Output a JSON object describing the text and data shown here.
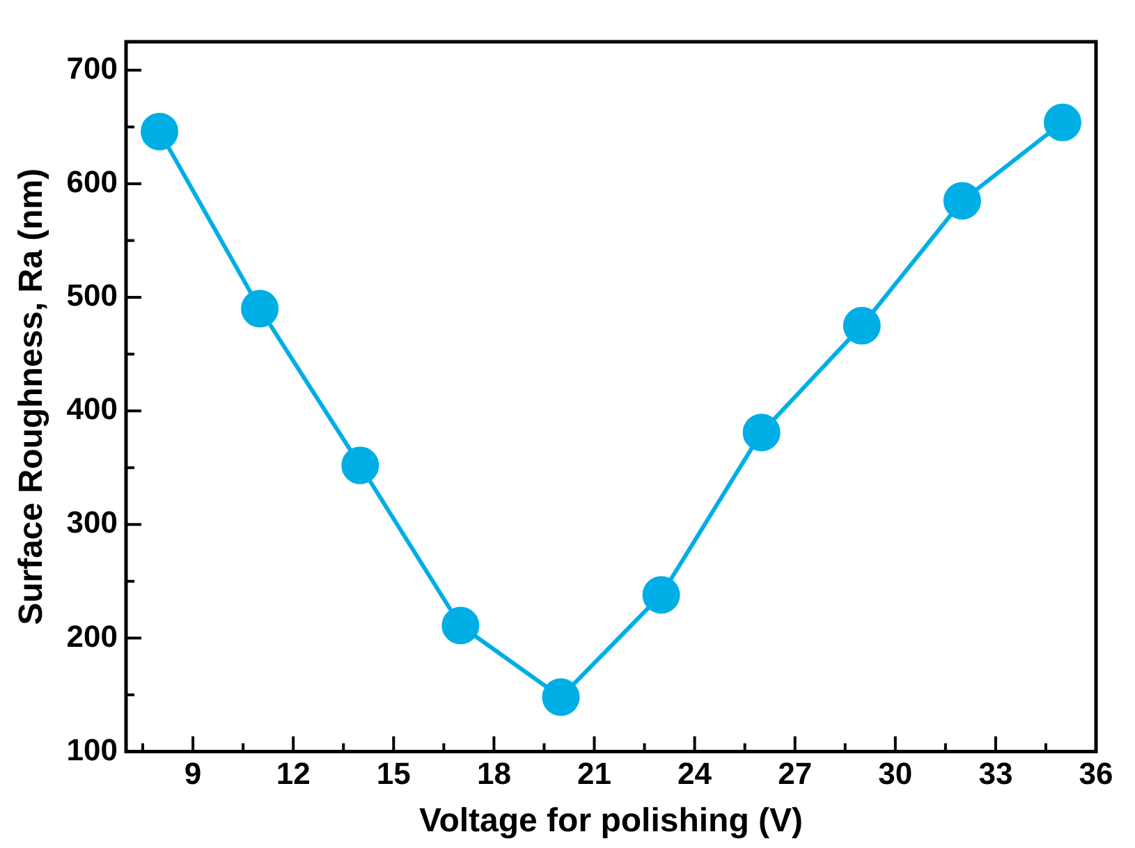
{
  "chart_data": {
    "type": "line",
    "xlabel": "Voltage for polishing (V)",
    "ylabel": "Surface Roughness, Ra (nm)",
    "x": [
      8,
      11,
      14,
      17,
      20,
      23,
      26,
      29,
      32,
      35
    ],
    "series": [
      {
        "color": "#00aee6",
        "values": [
          646,
          490,
          352,
          211,
          148,
          238,
          381,
          475,
          585,
          654
        ]
      }
    ],
    "xlim": [
      7,
      36
    ],
    "ylim": [
      100,
      725
    ],
    "xticks": [
      {
        "value": 7.5,
        "label": null
      },
      9,
      {
        "value": 10.5,
        "label": null
      },
      12,
      {
        "value": 13.5,
        "label": null
      },
      15,
      {
        "value": 16.5,
        "label": null
      },
      18,
      {
        "value": 19.5,
        "label": null
      },
      21,
      {
        "value": 22.5,
        "label": null
      },
      24,
      {
        "value": 25.5,
        "label": null
      },
      27,
      {
        "value": 28.5,
        "label": null
      },
      30,
      {
        "value": 31.5,
        "label": null
      },
      33,
      {
        "value": 34.5,
        "label": null
      },
      36
    ],
    "yticks": [
      100,
      {
        "value": 150,
        "label": null
      },
      200,
      {
        "value": 250,
        "label": null
      },
      300,
      {
        "value": 350,
        "label": null
      },
      400,
      {
        "value": 450,
        "label": null
      },
      500,
      {
        "value": 550,
        "label": null
      },
      600,
      {
        "value": 650,
        "label": null
      },
      700
    ],
    "grid": false,
    "legend": false,
    "marker": "circle",
    "line_style": "solid"
  }
}
